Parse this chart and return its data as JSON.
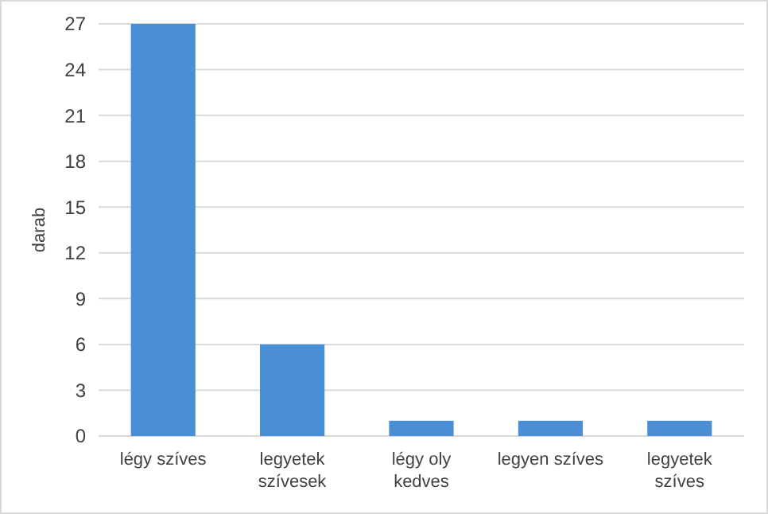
{
  "chart_data": {
    "type": "bar",
    "ylabel": "darab",
    "categories": [
      "légy szíves",
      "legyetek szívesek",
      "légy oly kedves",
      "legyen szíves",
      "legyetek szíves"
    ],
    "values": [
      27,
      6,
      1,
      1,
      1
    ],
    "color": "#4a8fd6",
    "ylim": [
      0,
      27
    ],
    "yticks": [
      0,
      3,
      6,
      9,
      12,
      15,
      18,
      21,
      24,
      27
    ],
    "grid": "y"
  }
}
